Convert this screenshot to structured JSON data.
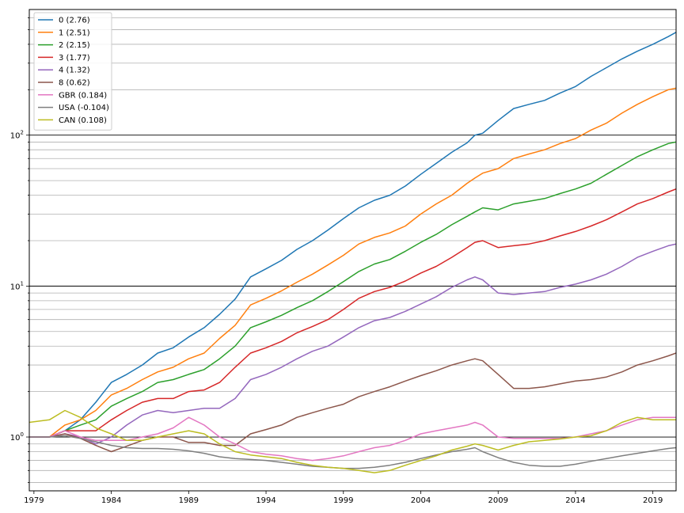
{
  "chart_data": {
    "type": "line",
    "title": "",
    "xlabel": "",
    "ylabel": "",
    "x_scale": "time",
    "y_scale": "log",
    "xlim": [
      1978.7,
      2020.5
    ],
    "ylim": [
      0.44,
      680
    ],
    "grid": "horizontal major and minor",
    "legend_position": "top-left",
    "x_ticks": [
      {
        "value": 1979,
        "label": "1979"
      },
      {
        "value": 1984,
        "label": "1984"
      },
      {
        "value": 1989,
        "label": "1989"
      },
      {
        "value": 1994,
        "label": "1994"
      },
      {
        "value": 1999,
        "label": "1999"
      },
      {
        "value": 2004,
        "label": "2004"
      },
      {
        "value": 2009,
        "label": "2009"
      },
      {
        "value": 2014,
        "label": "2014"
      },
      {
        "value": 2019,
        "label": "2019"
      }
    ],
    "y_major_ticks": [
      {
        "value": 1,
        "base": "10",
        "exp": "0"
      },
      {
        "value": 10,
        "base": "10",
        "exp": "1"
      },
      {
        "value": 100,
        "base": "10",
        "exp": "2"
      }
    ],
    "series": [
      {
        "name": "0 (2.76)",
        "color": "#1f77b4",
        "x": [
          1978.7,
          1980,
          1981,
          1982,
          1983,
          1984,
          1985,
          1986,
          1987,
          1988,
          1989,
          1990,
          1991,
          1992,
          1993,
          1994,
          1995,
          1996,
          1997,
          1998,
          1999,
          2000,
          2001,
          2002,
          2003,
          2004,
          2005,
          2006,
          2007,
          2007.5,
          2008,
          2009,
          2010,
          2011,
          2012,
          2013,
          2014,
          2015,
          2016,
          2017,
          2018,
          2019,
          2020,
          2020.5
        ],
        "y": [
          1.0,
          1.0,
          1.1,
          1.3,
          1.7,
          2.3,
          2.6,
          3.0,
          3.6,
          3.9,
          4.6,
          5.3,
          6.5,
          8.2,
          11.5,
          13.0,
          14.8,
          17.5,
          20.0,
          23.5,
          28.0,
          33.0,
          37.0,
          40.0,
          46.0,
          55.0,
          65.0,
          77.0,
          89.0,
          100.0,
          103.0,
          125.0,
          150.0,
          160.0,
          170.0,
          190.0,
          210.0,
          245.0,
          280.0,
          320.0,
          360.0,
          400.0,
          450.0,
          480.0
        ]
      },
      {
        "name": "1 (2.51)",
        "color": "#ff7f0e",
        "x": [
          1978.7,
          1980,
          1981,
          1982,
          1983,
          1984,
          1985,
          1986,
          1987,
          1988,
          1989,
          1990,
          1991,
          1992,
          1993,
          1994,
          1995,
          1996,
          1997,
          1998,
          1999,
          2000,
          2001,
          2002,
          2003,
          2004,
          2005,
          2006,
          2007,
          2007.5,
          2008,
          2009,
          2010,
          2011,
          2012,
          2013,
          2014,
          2015,
          2016,
          2017,
          2018,
          2019,
          2020,
          2020.5
        ],
        "y": [
          1.0,
          1.0,
          1.2,
          1.3,
          1.5,
          1.9,
          2.1,
          2.4,
          2.7,
          2.9,
          3.3,
          3.6,
          4.5,
          5.5,
          7.5,
          8.3,
          9.3,
          10.6,
          12.0,
          13.8,
          16.0,
          19.0,
          21.0,
          22.5,
          25.0,
          30.0,
          35.0,
          40.0,
          48.0,
          52.0,
          56.0,
          60.0,
          70.0,
          75.0,
          80.0,
          88.0,
          95.0,
          108.0,
          120.0,
          140.0,
          160.0,
          180.0,
          200.0,
          205.0
        ]
      },
      {
        "name": "2 (2.15)",
        "color": "#2ca02c",
        "x": [
          1978.7,
          1980,
          1981,
          1982,
          1983,
          1984,
          1985,
          1986,
          1987,
          1988,
          1989,
          1990,
          1991,
          1992,
          1993,
          1994,
          1995,
          1996,
          1997,
          1998,
          1999,
          2000,
          2001,
          2002,
          2003,
          2004,
          2005,
          2006,
          2007,
          2007.5,
          2008,
          2009,
          2010,
          2011,
          2012,
          2013,
          2014,
          2015,
          2016,
          2017,
          2018,
          2019,
          2020,
          2020.5
        ],
        "y": [
          1.0,
          1.0,
          1.1,
          1.2,
          1.3,
          1.6,
          1.8,
          2.0,
          2.3,
          2.4,
          2.6,
          2.8,
          3.3,
          4.0,
          5.3,
          5.8,
          6.4,
          7.2,
          8.0,
          9.2,
          10.7,
          12.5,
          14.0,
          15.0,
          17.0,
          19.5,
          22.0,
          25.5,
          29.0,
          31.0,
          33.0,
          32.0,
          35.0,
          36.5,
          38.0,
          41.0,
          44.0,
          48.0,
          55.0,
          63.0,
          72.0,
          80.0,
          88.0,
          90.0
        ]
      },
      {
        "name": "3 (1.77)",
        "color": "#d62728",
        "x": [
          1978.7,
          1980,
          1981,
          1982,
          1983,
          1984,
          1985,
          1986,
          1987,
          1988,
          1989,
          1990,
          1991,
          1992,
          1993,
          1994,
          1995,
          1996,
          1997,
          1998,
          1999,
          2000,
          2001,
          2002,
          2003,
          2004,
          2005,
          2006,
          2007,
          2007.5,
          2008,
          2009,
          2010,
          2011,
          2012,
          2013,
          2014,
          2015,
          2016,
          2017,
          2018,
          2019,
          2020,
          2020.5
        ],
        "y": [
          1.0,
          1.0,
          1.1,
          1.1,
          1.1,
          1.3,
          1.5,
          1.7,
          1.8,
          1.8,
          2.0,
          2.05,
          2.3,
          2.9,
          3.6,
          3.9,
          4.3,
          4.9,
          5.4,
          6.0,
          7.0,
          8.3,
          9.2,
          9.8,
          10.8,
          12.2,
          13.5,
          15.5,
          18.0,
          19.5,
          20.0,
          18.0,
          18.5,
          19.0,
          20.0,
          21.5,
          23.0,
          25.0,
          27.5,
          31.0,
          35.0,
          38.0,
          42.0,
          44.0
        ]
      },
      {
        "name": "4 (1.32)",
        "color": "#9467bd",
        "x": [
          1978.7,
          1980,
          1981,
          1982,
          1983,
          1984,
          1985,
          1986,
          1987,
          1988,
          1989,
          1990,
          1991,
          1992,
          1993,
          1994,
          1995,
          1996,
          1997,
          1998,
          1999,
          2000,
          2001,
          2002,
          2003,
          2004,
          2005,
          2006,
          2007,
          2007.5,
          2008,
          2009,
          2010,
          2011,
          2012,
          2013,
          2014,
          2015,
          2016,
          2017,
          2018,
          2019,
          2020,
          2020.5
        ],
        "y": [
          1.0,
          1.0,
          1.05,
          1.0,
          0.9,
          1.0,
          1.2,
          1.4,
          1.5,
          1.45,
          1.5,
          1.55,
          1.55,
          1.8,
          2.4,
          2.6,
          2.9,
          3.3,
          3.7,
          4.0,
          4.6,
          5.3,
          5.9,
          6.2,
          6.8,
          7.6,
          8.5,
          9.8,
          11.0,
          11.5,
          11.0,
          9.0,
          8.8,
          9.0,
          9.2,
          9.8,
          10.3,
          11.0,
          12.0,
          13.5,
          15.5,
          17.0,
          18.5,
          19.0
        ]
      },
      {
        "name": "8 (0.62)",
        "color": "#8c564b",
        "x": [
          1978.7,
          1980,
          1981,
          1982,
          1983,
          1984,
          1985,
          1986,
          1987,
          1988,
          1989,
          1990,
          1991,
          1992,
          1993,
          1994,
          1995,
          1996,
          1997,
          1998,
          1999,
          2000,
          2001,
          2002,
          2003,
          2004,
          2005,
          2006,
          2007,
          2007.5,
          2008,
          2009,
          2010,
          2011,
          2012,
          2013,
          2014,
          2015,
          2016,
          2017,
          2018,
          2019,
          2020,
          2020.5
        ],
        "y": [
          1.0,
          1.0,
          1.05,
          0.98,
          0.88,
          0.8,
          0.87,
          0.95,
          1.0,
          1.0,
          0.92,
          0.92,
          0.88,
          0.88,
          1.05,
          1.12,
          1.2,
          1.35,
          1.45,
          1.55,
          1.65,
          1.85,
          2.0,
          2.15,
          2.35,
          2.55,
          2.75,
          3.0,
          3.2,
          3.3,
          3.2,
          2.6,
          2.1,
          2.1,
          2.15,
          2.25,
          2.35,
          2.4,
          2.5,
          2.7,
          3.0,
          3.2,
          3.45,
          3.6
        ]
      },
      {
        "name": "GBR (0.184)",
        "color": "#e377c2",
        "x": [
          1978.7,
          1980,
          1981,
          1982,
          1983,
          1984,
          1985,
          1986,
          1987,
          1988,
          1989,
          1990,
          1991,
          1992,
          1993,
          1994,
          1995,
          1996,
          1997,
          1998,
          1999,
          2000,
          2001,
          2002,
          2003,
          2004,
          2005,
          2006,
          2007,
          2007.5,
          2008,
          2009,
          2010,
          2011,
          2012,
          2013,
          2014,
          2015,
          2016,
          2017,
          2018,
          2019,
          2020,
          2020.5
        ],
        "y": [
          1.0,
          1.0,
          1.1,
          1.0,
          0.95,
          0.95,
          0.95,
          1.0,
          1.05,
          1.15,
          1.35,
          1.2,
          1.0,
          0.9,
          0.8,
          0.77,
          0.75,
          0.72,
          0.7,
          0.72,
          0.75,
          0.8,
          0.85,
          0.88,
          0.95,
          1.05,
          1.1,
          1.15,
          1.2,
          1.25,
          1.2,
          1.0,
          0.98,
          0.98,
          0.98,
          0.98,
          1.0,
          1.05,
          1.1,
          1.2,
          1.3,
          1.35,
          1.35,
          1.35
        ]
      },
      {
        "name": "USA (-0.104)",
        "color": "#7f7f7f",
        "x": [
          1978.7,
          1980,
          1981,
          1982,
          1983,
          1984,
          1985,
          1986,
          1987,
          1988,
          1989,
          1990,
          1991,
          1992,
          1993,
          1994,
          1995,
          1996,
          1997,
          1998,
          1999,
          2000,
          2001,
          2002,
          2003,
          2004,
          2005,
          2006,
          2007,
          2007.5,
          2008,
          2009,
          2010,
          2011,
          2012,
          2013,
          2014,
          2015,
          2016,
          2017,
          2018,
          2019,
          2020,
          2020.5
        ],
        "y": [
          1.0,
          1.0,
          1.02,
          0.98,
          0.93,
          0.88,
          0.85,
          0.84,
          0.84,
          0.83,
          0.81,
          0.78,
          0.74,
          0.72,
          0.71,
          0.7,
          0.68,
          0.66,
          0.64,
          0.63,
          0.62,
          0.62,
          0.63,
          0.65,
          0.68,
          0.72,
          0.76,
          0.8,
          0.83,
          0.85,
          0.8,
          0.73,
          0.68,
          0.65,
          0.64,
          0.64,
          0.66,
          0.69,
          0.72,
          0.75,
          0.78,
          0.81,
          0.84,
          0.85
        ]
      },
      {
        "name": "CAN (0.108)",
        "color": "#bcbd22",
        "x": [
          1978.7,
          1980,
          1981,
          1982,
          1983,
          1984,
          1985,
          1986,
          1987,
          1988,
          1989,
          1990,
          1991,
          1992,
          1993,
          1994,
          1995,
          1996,
          1997,
          1998,
          1999,
          2000,
          2001,
          2002,
          2003,
          2004,
          2005,
          2006,
          2007,
          2007.5,
          2008,
          2009,
          2010,
          2011,
          2012,
          2013,
          2014,
          2015,
          2016,
          2017,
          2018,
          2019,
          2020,
          2020.5
        ],
        "y": [
          1.25,
          1.3,
          1.5,
          1.35,
          1.15,
          1.05,
          0.95,
          0.95,
          1.0,
          1.05,
          1.1,
          1.05,
          0.9,
          0.8,
          0.76,
          0.74,
          0.72,
          0.68,
          0.65,
          0.63,
          0.62,
          0.6,
          0.58,
          0.6,
          0.65,
          0.7,
          0.75,
          0.82,
          0.87,
          0.9,
          0.88,
          0.82,
          0.88,
          0.93,
          0.95,
          0.97,
          1.0,
          1.02,
          1.1,
          1.25,
          1.35,
          1.3,
          1.3,
          1.3
        ]
      }
    ]
  }
}
